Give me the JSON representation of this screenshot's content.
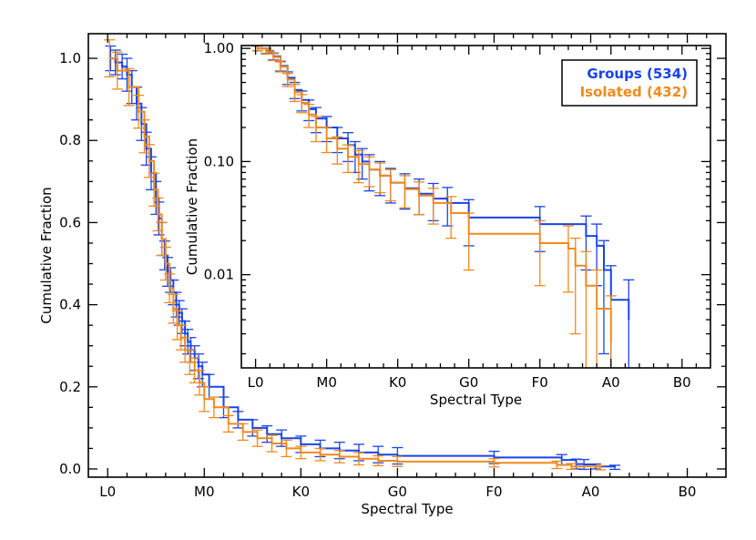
{
  "chart_data": [
    {
      "type": "line",
      "chart": "main",
      "xlabel": "Spectral Type",
      "ylabel": "Cumulative Fraction",
      "x_tick_labels": [
        "L0",
        "M0",
        "K0",
        "G0",
        "F0",
        "A0",
        "B0"
      ],
      "x_tick_values": [
        0,
        10,
        20,
        30,
        40,
        50,
        60
      ],
      "xlim": [
        -2,
        64
      ],
      "ylim": [
        -0.02,
        1.06
      ],
      "y_ticks": [
        0.0,
        0.2,
        0.4,
        0.6,
        0.8,
        1.0
      ],
      "y_tick_labels": [
        "0.0",
        "0.2",
        "0.4",
        "0.6",
        "0.8",
        "1.0"
      ],
      "y_scale": "linear",
      "series": [
        {
          "name": "Groups (534)",
          "color": "#1a44e8",
          "x": [
            0.3,
            0.8,
            1.5,
            2.0,
            2.5,
            3.0,
            3.5,
            4.0,
            4.5,
            5.0,
            5.3,
            5.6,
            5.9,
            6.2,
            6.5,
            6.8,
            7.1,
            7.4,
            7.7,
            8.0,
            8.3,
            8.6,
            9.0,
            9.4,
            9.8,
            10.5,
            12.0,
            13.5,
            15.0,
            16.5,
            18.0,
            20.0,
            22.0,
            24.0,
            26.0,
            28.0,
            30.0,
            40.0,
            47.0,
            48.5,
            49.3,
            50.5,
            52.5
          ],
          "y": [
            1.0,
            0.99,
            0.98,
            0.96,
            0.93,
            0.89,
            0.84,
            0.78,
            0.72,
            0.66,
            0.61,
            0.56,
            0.52,
            0.48,
            0.46,
            0.43,
            0.4,
            0.38,
            0.36,
            0.33,
            0.31,
            0.29,
            0.27,
            0.25,
            0.23,
            0.2,
            0.15,
            0.12,
            0.1,
            0.085,
            0.075,
            0.06,
            0.05,
            0.045,
            0.04,
            0.035,
            0.032,
            0.028,
            0.022,
            0.012,
            0.011,
            0.006,
            0.004
          ],
          "err": [
            0.03,
            0.03,
            0.03,
            0.04,
            0.04,
            0.04,
            0.04,
            0.04,
            0.04,
            0.04,
            0.04,
            0.04,
            0.035,
            0.035,
            0.03,
            0.03,
            0.03,
            0.03,
            0.03,
            0.03,
            0.03,
            0.03,
            0.03,
            0.03,
            0.03,
            0.03,
            0.025,
            0.02,
            0.02,
            0.02,
            0.02,
            0.02,
            0.02,
            0.02,
            0.02,
            0.02,
            0.02,
            0.015,
            0.013,
            0.012,
            0.012,
            0.006,
            0.005
          ]
        },
        {
          "name": "Isolated (432)",
          "color": "#f08a1c",
          "x": [
            0.2,
            1.0,
            2.2,
            3.2,
            3.8,
            4.3,
            4.8,
            5.2,
            5.6,
            6.0,
            6.4,
            6.8,
            7.2,
            7.6,
            8.0,
            8.5,
            9.0,
            9.5,
            10.0,
            11.0,
            12.5,
            14.0,
            15.5,
            17.0,
            18.5,
            20.0,
            22.0,
            24.0,
            26.0,
            28.0,
            30.0,
            40.0,
            46.5,
            48.0,
            51.0
          ],
          "y": [
            1.0,
            0.97,
            0.93,
            0.87,
            0.81,
            0.75,
            0.68,
            0.62,
            0.56,
            0.5,
            0.44,
            0.39,
            0.35,
            0.32,
            0.29,
            0.26,
            0.24,
            0.21,
            0.17,
            0.15,
            0.11,
            0.09,
            0.075,
            0.062,
            0.05,
            0.04,
            0.035,
            0.03,
            0.025,
            0.02,
            0.018,
            0.015,
            0.01,
            0.006,
            0.003
          ],
          "err": [
            0.045,
            0.045,
            0.045,
            0.04,
            0.04,
            0.04,
            0.04,
            0.04,
            0.04,
            0.04,
            0.035,
            0.035,
            0.035,
            0.03,
            0.03,
            0.03,
            0.03,
            0.03,
            0.03,
            0.025,
            0.02,
            0.02,
            0.02,
            0.02,
            0.02,
            0.015,
            0.015,
            0.015,
            0.015,
            0.012,
            0.012,
            0.01,
            0.009,
            0.007,
            0.005
          ]
        }
      ]
    },
    {
      "type": "line",
      "chart": "inset",
      "xlabel": "Spectral Type",
      "ylabel": "Cumulative Fraction",
      "x_tick_labels": [
        "L0",
        "M0",
        "K0",
        "G0",
        "F0",
        "A0",
        "B0"
      ],
      "x_tick_values": [
        0,
        10,
        20,
        30,
        40,
        50,
        60
      ],
      "xlim": [
        -2,
        64
      ],
      "ylim": [
        0.0015,
        1.06
      ],
      "y_ticks": [
        1.0,
        0.1,
        0.01
      ],
      "y_tick_labels": [
        "1.00",
        "0.10",
        "0.01"
      ],
      "y_scale": "log",
      "legend_position": "top-right",
      "series": [
        {
          "name": "Groups (534)",
          "color": "#1a44e8",
          "x": [
            0.3,
            1.5,
            2.5,
            3.5,
            4.5,
            5.5,
            6.5,
            7.5,
            8.5,
            10.0,
            11.5,
            13.0,
            14.0,
            15.0,
            16.0,
            17.5,
            19.0,
            21.0,
            23.0,
            25.0,
            27.0,
            30.0,
            40.0,
            46.5,
            48.0,
            49.0,
            50.0,
            52.5
          ],
          "y": [
            1.0,
            0.95,
            0.85,
            0.7,
            0.55,
            0.43,
            0.35,
            0.29,
            0.24,
            0.2,
            0.16,
            0.14,
            0.115,
            0.1,
            0.085,
            0.075,
            0.065,
            0.058,
            0.052,
            0.047,
            0.043,
            0.032,
            0.028,
            0.022,
            0.018,
            0.011,
            0.006,
            0.004
          ],
          "err": [
            0.05,
            0.05,
            0.06,
            0.07,
            0.07,
            0.07,
            0.07,
            0.06,
            0.06,
            0.05,
            0.04,
            0.04,
            0.035,
            0.03,
            0.03,
            0.025,
            0.022,
            0.02,
            0.018,
            0.017,
            0.016,
            0.014,
            0.012,
            0.011,
            0.01,
            0.009,
            0.006,
            0.005
          ]
        },
        {
          "name": "Isolated (432)",
          "color": "#f08a1c",
          "x": [
            0.3,
            1.5,
            2.5,
            3.5,
            4.5,
            5.5,
            6.5,
            7.5,
            8.5,
            10.0,
            11.5,
            13.0,
            14.5,
            16.0,
            17.5,
            19.0,
            21.0,
            23.0,
            25.0,
            27.5,
            30.0,
            40.0,
            44.0,
            45.0,
            46.5,
            48.0,
            50.0
          ],
          "y": [
            1.0,
            0.94,
            0.84,
            0.69,
            0.53,
            0.41,
            0.33,
            0.26,
            0.2,
            0.16,
            0.13,
            0.11,
            0.095,
            0.085,
            0.075,
            0.065,
            0.057,
            0.05,
            0.043,
            0.035,
            0.023,
            0.019,
            0.017,
            0.012,
            0.008,
            0.005,
            0.0025
          ],
          "err": [
            0.05,
            0.05,
            0.06,
            0.07,
            0.07,
            0.07,
            0.06,
            0.06,
            0.05,
            0.04,
            0.035,
            0.03,
            0.03,
            0.025,
            0.022,
            0.02,
            0.018,
            0.016,
            0.015,
            0.014,
            0.012,
            0.011,
            0.01,
            0.009,
            0.008,
            0.006,
            0.004
          ]
        }
      ]
    }
  ]
}
